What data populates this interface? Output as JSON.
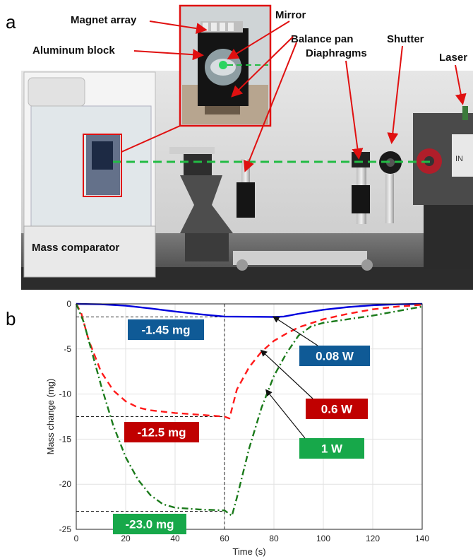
{
  "panels": {
    "a": "a",
    "b": "b"
  },
  "photo_labels": {
    "magnet_array": "Magnet array",
    "aluminum_block": "Aluminum block",
    "mirror": "Mirror",
    "balance_pan": "Balance pan",
    "diaphragms": "Diaphragms",
    "shutter": "Shutter",
    "laser": "Laser",
    "mass_comparator": "Mass comparator",
    "laser_housing_text": "IN"
  },
  "colors": {
    "blue": "#0000dd",
    "red": "#ff1a1a",
    "green": "#1a7a1a",
    "box_blue": "#0f5a96",
    "box_red": "#c00000",
    "box_green": "#17a84a",
    "beam": "#22bb44"
  },
  "chart_data": {
    "type": "line",
    "xlabel": "Time (s)",
    "ylabel": "Mass change (mg)",
    "xlim": [
      0,
      140
    ],
    "ylim": [
      -25,
      0
    ],
    "xticks": [
      "0",
      "20",
      "40",
      "60",
      "80",
      "100",
      "120",
      "140"
    ],
    "yticks": [
      "0",
      "-5",
      "-10",
      "-15",
      "-20",
      "-25"
    ],
    "grid": true,
    "shutter_time": 60,
    "series": [
      {
        "name": "0.08 W",
        "style": "solid",
        "color": "#0000dd",
        "x": [
          0,
          10,
          20,
          30,
          40,
          50,
          60,
          70,
          80,
          84,
          90,
          100,
          110,
          120,
          130,
          140
        ],
        "y": [
          0,
          -0.05,
          -0.2,
          -0.5,
          -0.85,
          -1.15,
          -1.4,
          -1.43,
          -1.45,
          -1.4,
          -1.1,
          -0.65,
          -0.35,
          -0.15,
          -0.05,
          0
        ]
      },
      {
        "name": "0.6 W",
        "style": "dashed",
        "color": "#ff1a1a",
        "x": [
          0,
          2,
          5,
          10,
          15,
          20,
          25,
          30,
          40,
          50,
          60,
          62,
          65,
          70,
          75,
          80,
          85,
          90,
          100,
          110,
          120,
          130,
          140
        ],
        "y": [
          0,
          -1,
          -4,
          -7.5,
          -9.6,
          -10.8,
          -11.5,
          -11.8,
          -12.1,
          -12.3,
          -12.5,
          -12.7,
          -9.5,
          -7,
          -5.3,
          -4.1,
          -3.3,
          -2.6,
          -1.7,
          -1.1,
          -0.6,
          -0.3,
          -0.1
        ]
      },
      {
        "name": "1 W",
        "style": "dashdot",
        "color": "#1a7a1a",
        "x": [
          0,
          3,
          6,
          10,
          15,
          20,
          25,
          30,
          35,
          40,
          50,
          60,
          62,
          63,
          65,
          70,
          75,
          80,
          85,
          90,
          95,
          100,
          110,
          120,
          130,
          140
        ],
        "y": [
          0,
          -2,
          -5,
          -9,
          -13.5,
          -17,
          -19.5,
          -21.2,
          -22.2,
          -22.6,
          -22.8,
          -22.9,
          -23.3,
          -23.5,
          -21.5,
          -16,
          -11.5,
          -8,
          -5.5,
          -3.5,
          -2.5,
          -2.1,
          -1.7,
          -1.3,
          -0.8,
          -0.3
        ]
      }
    ],
    "annotations": [
      {
        "text": "-1.45 mg",
        "level": -1.45,
        "box": "blue"
      },
      {
        "text": "-12.5 mg",
        "level": -12.5,
        "box": "red"
      },
      {
        "text": "-23.0 mg",
        "level": -23.0,
        "box": "green"
      },
      {
        "text": "0.08 W",
        "box": "blue"
      },
      {
        "text": "0.6 W",
        "box": "red"
      },
      {
        "text": "1 W",
        "box": "green"
      }
    ]
  }
}
